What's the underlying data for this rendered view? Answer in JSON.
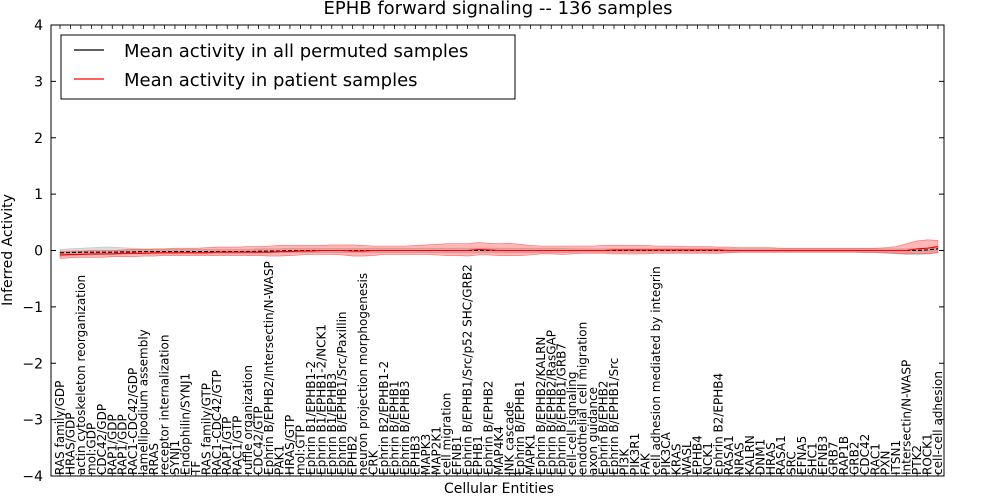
{
  "chart_data": {
    "type": "line",
    "title": "EPHB forward signaling -- 136 samples",
    "xlabel": "Cellular Entities",
    "ylabel": "Inferred Activity",
    "ylim": [
      -4,
      4
    ],
    "yticks": [
      -4,
      -3,
      -2,
      -1,
      0,
      1,
      2,
      3,
      4
    ],
    "ytick_labels": [
      "−4",
      "−3",
      "−2",
      "−1",
      "0",
      "1",
      "2",
      "3",
      "4"
    ],
    "legend_position": "top-left",
    "categories": [
      "RAS family/GDP",
      "HRAS/GDP",
      "actin cytoskeleton reorganization",
      "mol:GDP",
      "CDC42/GDP",
      "RAP1/GDP",
      "RAP1/GDP",
      "RAC1-CDC42/GDP",
      "lamellipodium assembly",
      "RRAS",
      "receptor internalization",
      "SYNJ1",
      "Endophilin/SYNJ1",
      "TF",
      "RAS family/GTP",
      "RAC1-CDC42/GTP",
      "RAP1/GTP",
      "RAC1/GTP",
      "ruffle organization",
      "CDC42/GTP",
      "Ephrin B/EPHB2/Intersectin/N-WASP",
      "PAK1",
      "HRAS/GTP",
      "mol:GTP",
      "Ephrin B1/EPHB1-2",
      "Ephrin B1/EPHB1-2/NCK1",
      "Ephrin B1/EPHB3",
      "Ephrin B/EPHB1/Src/Paxillin",
      "EPHB2",
      "neuron projection morphogenesis",
      "CRK",
      "Ephrin B2/EPHB1-2",
      "Ephrin B/EPHB1",
      "Ephrin B/EPHB3",
      "EPHB3",
      "MAPK3",
      "MAP2K1",
      "cell migration",
      "EFNB1",
      "Ephrin B/EPHB1/Src/p52 SHC/GRB2",
      "EPHB1",
      "Ephrin B/EPHB2",
      "MAP4K4",
      "JNK cascade",
      "Ephrin B/EPHB1",
      "MAPK1",
      "Ephrin B/EPHB2/KALRN",
      "Ephrin B/EPHB2/RasGAP",
      "Ephrin B/EPHB1/GRB7",
      "cell-cell signaling",
      "endothelial cell migration",
      "axon guidance",
      "Ephrin B/EPHB2",
      "Ephrin B/EPHB1/Src",
      "PI3K",
      "PIK3R1",
      "FAK",
      "cell adhesion mediated by integrin",
      "PIK3CA",
      "KRAS",
      "WASL",
      "EPHB4",
      "NCK1",
      "Ephrin B2/EPHB4",
      "RASA1",
      "NRAS",
      "KALRN",
      "DNM1",
      "HRAS",
      "RASA1",
      "SRC",
      "EFNA5",
      "SHC1",
      "EFNB3",
      "GRB7",
      "RAP1B",
      "GRB2",
      "CDC42",
      "RAC1",
      "PXN",
      "ITSN1",
      "Intersectin/N-WASP",
      "PTK2",
      "ROCK1",
      "cell-cell adhesion"
    ],
    "series": [
      {
        "name": "Mean activity in all permuted samples",
        "color": "#000000",
        "values": [
          -0.04,
          -0.035,
          -0.03,
          -0.03,
          -0.03,
          -0.03,
          -0.025,
          -0.025,
          -0.02,
          -0.02,
          -0.02,
          -0.02,
          -0.02,
          -0.02,
          -0.02,
          -0.02,
          -0.02,
          -0.02,
          -0.02,
          -0.015,
          -0.01,
          -0.01,
          0.0,
          0.0,
          0.0,
          0.0,
          0.0,
          0.0,
          0.0,
          0.0,
          0.0,
          0.0,
          0.0,
          0.0,
          0.0,
          0.0,
          0.0,
          0.0,
          0.0,
          0.0,
          0.0,
          0.0,
          0.0,
          0.0,
          0.0,
          0.0,
          0.0,
          0.0,
          0.0,
          0.0,
          0.0,
          0.0,
          0.0,
          0.0,
          0.0,
          0.0,
          0.0,
          0.0,
          0.0,
          0.0,
          0.0,
          0.0,
          0.0,
          0.0,
          0.0,
          0.0,
          0.0,
          0.0,
          0.0,
          0.0,
          0.0,
          0.0,
          0.0,
          0.0,
          0.0,
          0.0,
          0.0,
          0.0,
          0.0,
          0.0,
          0.0,
          0.0,
          0.0,
          0.01,
          0.03
        ],
        "lower": [
          -0.1,
          -0.09,
          -0.08,
          -0.08,
          -0.07,
          -0.07,
          -0.07,
          -0.06,
          -0.06,
          -0.06,
          -0.05,
          -0.05,
          -0.05,
          -0.05,
          -0.05,
          -0.05,
          -0.05,
          -0.05,
          -0.05,
          -0.05,
          -0.04,
          -0.04,
          -0.04,
          -0.04,
          -0.04,
          -0.04,
          -0.04,
          -0.04,
          -0.04,
          -0.04,
          -0.04,
          -0.04,
          -0.04,
          -0.04,
          -0.04,
          -0.04,
          -0.04,
          -0.04,
          -0.04,
          -0.04,
          -0.04,
          -0.04,
          -0.04,
          -0.04,
          -0.04,
          -0.04,
          -0.04,
          -0.04,
          -0.04,
          -0.03,
          -0.03,
          -0.03,
          -0.03,
          -0.03,
          -0.03,
          -0.03,
          -0.03,
          -0.03,
          -0.03,
          -0.03,
          -0.03,
          -0.03,
          -0.03,
          -0.03,
          -0.03,
          -0.03,
          -0.03,
          -0.03,
          -0.03,
          -0.03,
          -0.03,
          -0.03,
          -0.03,
          -0.03,
          -0.03,
          -0.03,
          -0.03,
          -0.04,
          -0.04,
          -0.05,
          -0.06,
          -0.07,
          -0.08,
          -0.06,
          -0.03
        ],
        "upper": [
          0.02,
          0.03,
          0.04,
          0.05,
          0.06,
          0.06,
          0.05,
          0.04,
          0.03,
          0.02,
          0.02,
          0.02,
          0.02,
          0.02,
          0.02,
          0.02,
          0.02,
          0.02,
          0.02,
          0.03,
          0.03,
          0.03,
          0.04,
          0.04,
          0.04,
          0.04,
          0.04,
          0.04,
          0.04,
          0.04,
          0.04,
          0.04,
          0.04,
          0.04,
          0.04,
          0.04,
          0.04,
          0.04,
          0.04,
          0.04,
          0.04,
          0.04,
          0.04,
          0.04,
          0.04,
          0.04,
          0.04,
          0.04,
          0.04,
          0.03,
          0.03,
          0.03,
          0.03,
          0.03,
          0.03,
          0.03,
          0.03,
          0.03,
          0.03,
          0.03,
          0.03,
          0.03,
          0.03,
          0.03,
          0.03,
          0.03,
          0.03,
          0.03,
          0.03,
          0.03,
          0.03,
          0.03,
          0.03,
          0.03,
          0.03,
          0.03,
          0.03,
          0.03,
          0.03,
          0.03,
          0.03,
          0.03,
          0.03,
          0.04,
          0.05
        ]
      },
      {
        "name": "Mean activity in patient samples",
        "color": "#ff0000",
        "values": [
          -0.08,
          -0.07,
          -0.07,
          -0.06,
          -0.06,
          -0.06,
          -0.05,
          -0.05,
          -0.05,
          -0.04,
          -0.04,
          -0.04,
          -0.04,
          -0.04,
          -0.04,
          -0.03,
          -0.03,
          -0.03,
          -0.03,
          -0.03,
          -0.03,
          -0.02,
          -0.02,
          -0.01,
          -0.01,
          0.0,
          0.0,
          0.0,
          -0.01,
          -0.01,
          0.0,
          0.0,
          0.0,
          0.0,
          0.0,
          0.0,
          0.0,
          0.0,
          0.0,
          0.0,
          0.02,
          0.01,
          0.0,
          0.0,
          0.0,
          0.0,
          0.0,
          0.0,
          0.0,
          0.0,
          0.0,
          0.0,
          0.0,
          0.01,
          0.01,
          0.01,
          0.01,
          0.01,
          0.01,
          0.01,
          0.01,
          0.01,
          0.01,
          0.01,
          0.0,
          0.0,
          0.0,
          0.0,
          0.0,
          0.0,
          0.0,
          0.0,
          0.0,
          0.0,
          0.0,
          0.0,
          0.0,
          0.0,
          0.0,
          0.0,
          0.0,
          0.0,
          0.03,
          0.04,
          0.07
        ],
        "lower": [
          -0.14,
          -0.13,
          -0.12,
          -0.12,
          -0.12,
          -0.11,
          -0.11,
          -0.11,
          -0.1,
          -0.1,
          -0.09,
          -0.09,
          -0.09,
          -0.09,
          -0.09,
          -0.09,
          -0.09,
          -0.09,
          -0.09,
          -0.09,
          -0.1,
          -0.1,
          -0.09,
          -0.08,
          -0.07,
          -0.07,
          -0.07,
          -0.08,
          -0.1,
          -0.1,
          -0.09,
          -0.07,
          -0.07,
          -0.07,
          -0.07,
          -0.07,
          -0.08,
          -0.09,
          -0.09,
          -0.1,
          -0.08,
          -0.08,
          -0.09,
          -0.09,
          -0.09,
          -0.08,
          -0.06,
          -0.06,
          -0.07,
          -0.06,
          -0.05,
          -0.05,
          -0.05,
          -0.06,
          -0.06,
          -0.06,
          -0.06,
          -0.05,
          -0.05,
          -0.05,
          -0.05,
          -0.05,
          -0.05,
          -0.05,
          -0.04,
          -0.03,
          -0.03,
          -0.03,
          -0.03,
          -0.03,
          -0.03,
          -0.03,
          -0.03,
          -0.03,
          -0.03,
          -0.03,
          -0.03,
          -0.03,
          -0.03,
          -0.04,
          -0.05,
          -0.06,
          -0.05,
          -0.06,
          -0.04
        ],
        "upper": [
          -0.02,
          -0.01,
          -0.01,
          0.0,
          0.0,
          0.0,
          0.01,
          0.02,
          0.02,
          0.03,
          0.03,
          0.04,
          0.04,
          0.04,
          0.05,
          0.06,
          0.06,
          0.06,
          0.07,
          0.07,
          0.08,
          0.09,
          0.09,
          0.09,
          0.09,
          0.09,
          0.1,
          0.1,
          0.1,
          0.09,
          0.08,
          0.08,
          0.08,
          0.08,
          0.09,
          0.1,
          0.11,
          0.12,
          0.12,
          0.12,
          0.14,
          0.13,
          0.12,
          0.13,
          0.11,
          0.09,
          0.08,
          0.08,
          0.08,
          0.08,
          0.08,
          0.08,
          0.09,
          0.09,
          0.09,
          0.09,
          0.09,
          0.08,
          0.08,
          0.08,
          0.07,
          0.07,
          0.07,
          0.06,
          0.06,
          0.05,
          0.05,
          0.05,
          0.05,
          0.04,
          0.04,
          0.04,
          0.04,
          0.04,
          0.04,
          0.04,
          0.04,
          0.04,
          0.04,
          0.05,
          0.07,
          0.12,
          0.17,
          0.19,
          0.18
        ]
      }
    ]
  }
}
